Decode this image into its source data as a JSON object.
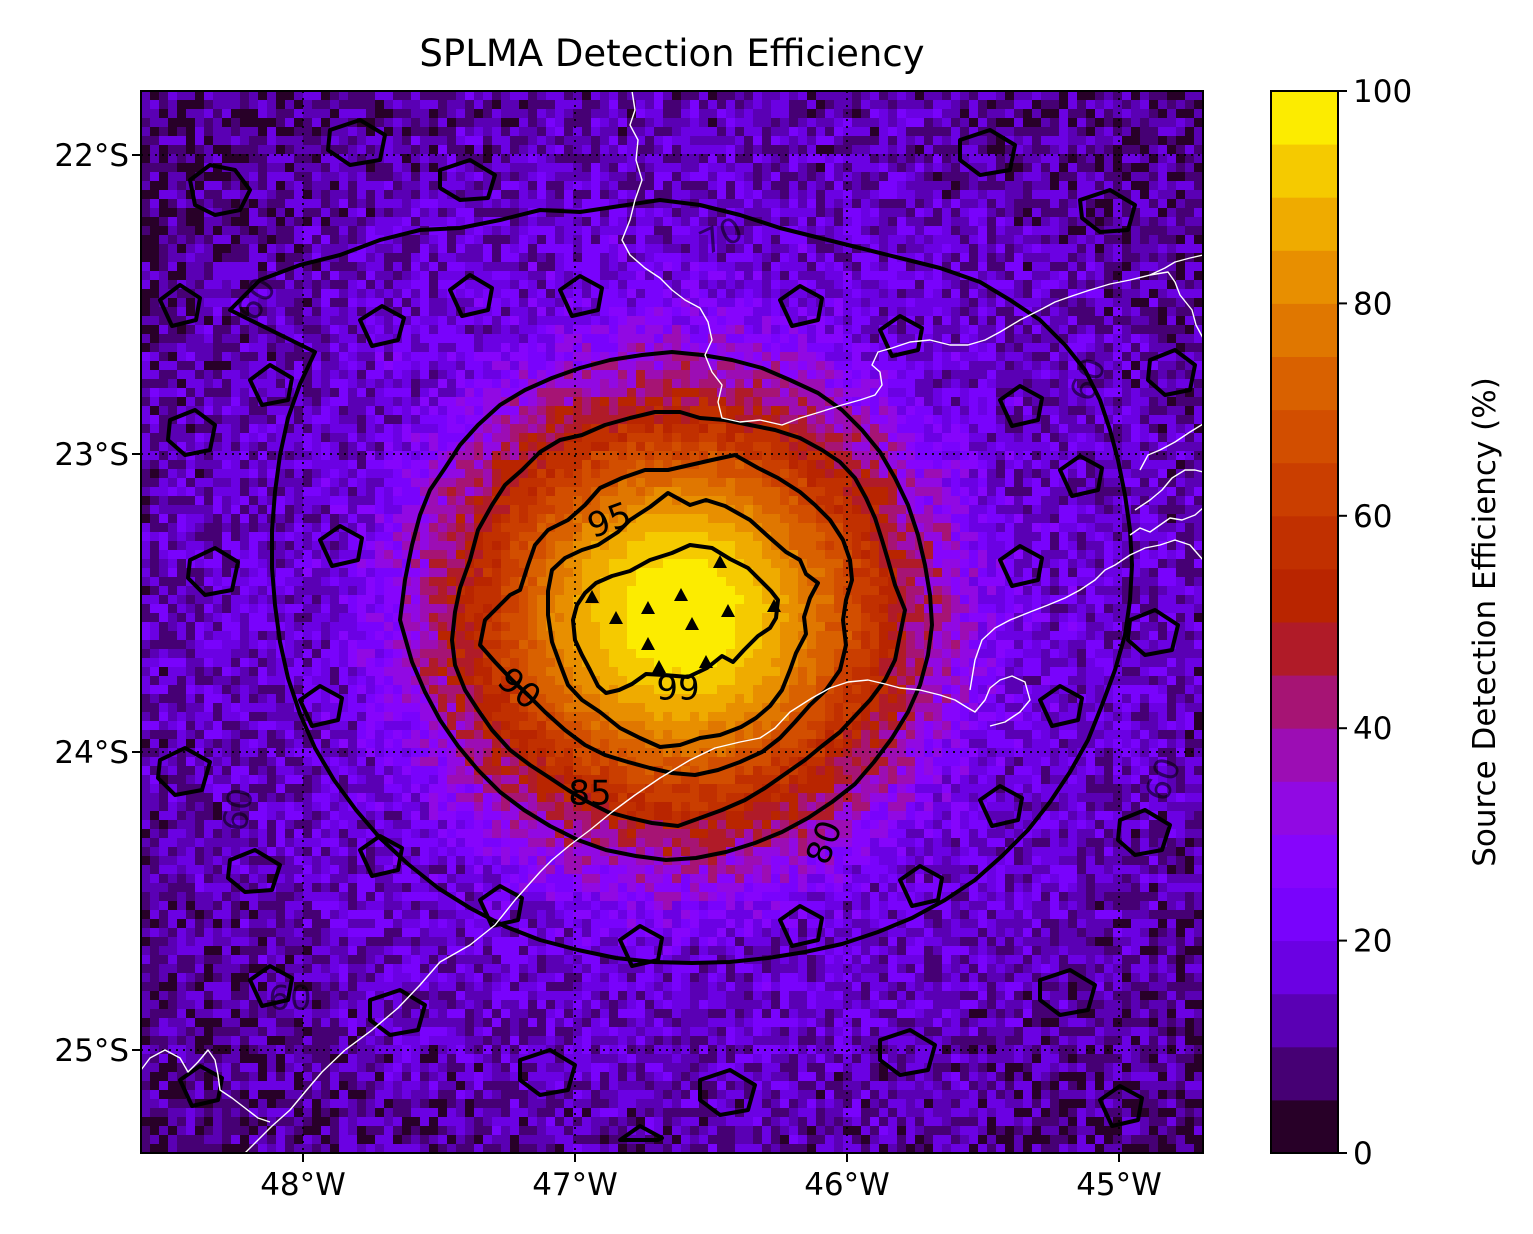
{
  "title": "SPLMA Detection Efficiency",
  "map": {
    "lon_ticks": [
      "48°W",
      "47°W",
      "46°W",
      "45°W"
    ],
    "lat_ticks": [
      "22°S",
      "23°S",
      "24°S",
      "25°S"
    ],
    "contour_labels": [
      "95",
      "99",
      "90",
      "85",
      "80",
      "70",
      "60",
      "60",
      "60",
      "60",
      "60"
    ],
    "field_colormap": "gnuplot",
    "coastline_color": "#ffffff",
    "station_marker": "triangle",
    "station_count": 11
  },
  "colorbar": {
    "label": "Source Detection Efficiency (%)",
    "ticks": [
      "0",
      "20",
      "40",
      "60",
      "80",
      "100"
    ],
    "levels": 20,
    "range": [
      0,
      100
    ]
  }
}
